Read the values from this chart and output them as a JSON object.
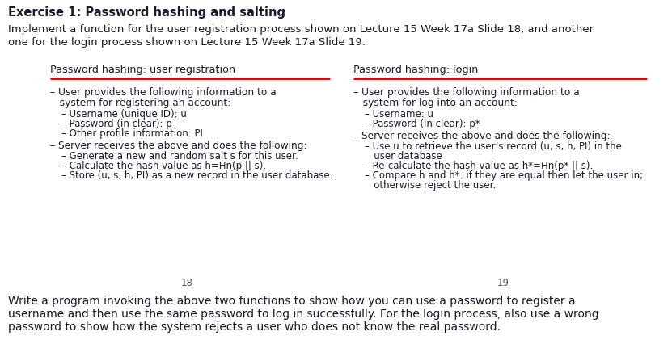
{
  "bg_color": "#ffffff",
  "text_color": "#1a1a2e",
  "divider_color": "#cc0000",
  "title": "Exercise 1: Password hashing and salting",
  "intro_line1": "Implement a function for the user registration process shown on Lecture 15 Week 17a Slide 18, and another",
  "intro_line2": "one for the login process shown on Lecture 15 Week 17a Slide 19.",
  "left_title": "Password hashing: user registration",
  "right_title": "Password hashing: login",
  "left_page": "18",
  "right_page": "19",
  "footer_line1": "Write a program invoking the above two functions to show how you can use a password to register a",
  "footer_line2": "username and then use the same password to log in successfully. For the login process, also use a wrong",
  "footer_line3": "password to show how the system rejects a user who does not know the real password."
}
